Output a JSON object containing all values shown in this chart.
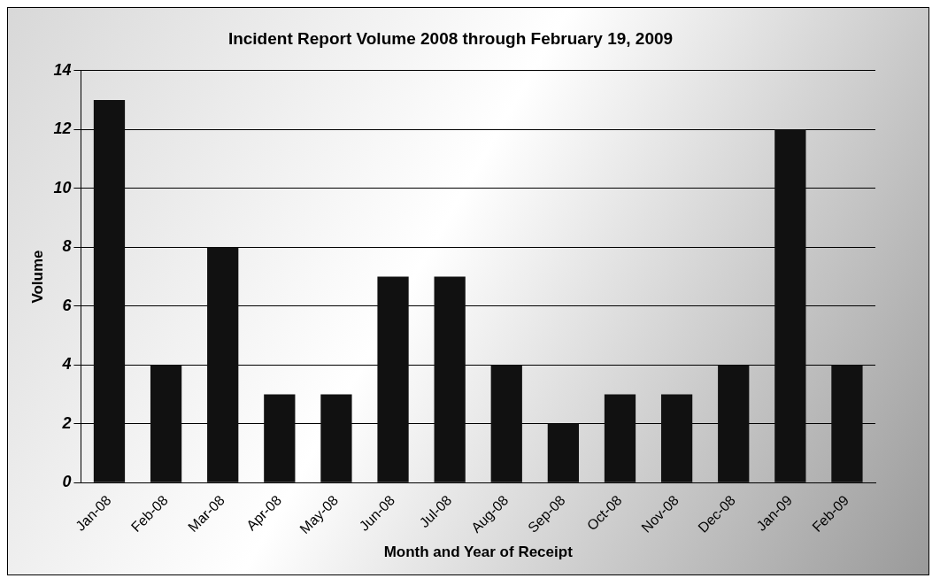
{
  "chart_data": {
    "type": "bar",
    "title": "Incident Report Volume 2008 through February 19, 2009",
    "xlabel": "Month and Year of Receipt",
    "ylabel": "Volume",
    "categories": [
      "Jan-08",
      "Feb-08",
      "Mar-08",
      "Apr-08",
      "May-08",
      "Jun-08",
      "Jul-08",
      "Aug-08",
      "Sep-08",
      "Oct-08",
      "Nov-08",
      "Dec-08",
      "Jan-09",
      "Feb-09"
    ],
    "values": [
      13,
      4,
      8,
      3,
      3,
      7,
      7,
      4,
      2,
      3,
      3,
      4,
      12,
      4
    ],
    "color": "#111111",
    "ylim": [
      0,
      14
    ],
    "yticks": [
      0,
      2,
      4,
      6,
      8,
      10,
      12,
      14
    ],
    "grid": "y"
  }
}
